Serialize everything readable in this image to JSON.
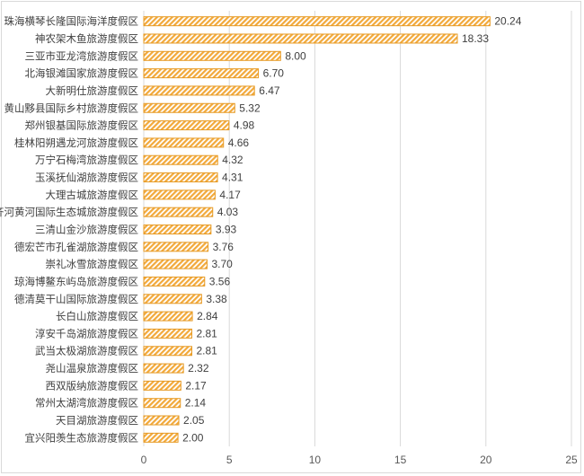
{
  "chart_data": {
    "type": "bar",
    "orientation": "horizontal",
    "title": "",
    "xlabel": "",
    "ylabel": "",
    "xlim": [
      0,
      25
    ],
    "xticks": [
      0,
      5,
      10,
      15,
      20,
      25
    ],
    "grid": true,
    "legend": "none",
    "bar_fill": "hatched",
    "colors": {
      "bar": "#f2a93b",
      "bar_stroke": "#e69a24",
      "grid": "#d9d9d9",
      "text": "#404040"
    },
    "categories": [
      "珠海横琴长隆国际海洋度假区",
      "神农架木鱼旅游度假区",
      "三亚市亚龙湾旅游度假区",
      "北海银滩国家旅游度假区",
      "大新明仕旅游度假区",
      "黄山黟县国际乡村旅游度假区",
      "郑州银基国际旅游度假区",
      "桂林阳朔遇龙河旅游度假区",
      "万宁石梅湾旅游度假区",
      "玉溪抚仙湖旅游度假区",
      "大理古城旅游度假区",
      "齐河黄河国际生态城旅游度假区",
      "三清山金沙旅游度假区",
      "德宏芒市孔雀湖旅游度假区",
      "崇礼冰雪旅游度假区",
      "琼海博鳌东屿岛旅游度假区",
      "德清莫干山国际旅游度假区",
      "长白山旅游度假区",
      "淳安千岛湖旅游度假区",
      "武当太极湖旅游度假区",
      "尧山温泉旅游度假区",
      "西双版纳旅游度假区",
      "常州太湖湾旅游度假区",
      "天目湖旅游度假区",
      "宜兴阳羡生态旅游度假区"
    ],
    "values": [
      20.24,
      18.33,
      8.0,
      6.7,
      6.47,
      5.32,
      4.98,
      4.66,
      4.32,
      4.31,
      4.17,
      4.03,
      3.93,
      3.76,
      3.7,
      3.56,
      3.38,
      2.84,
      2.81,
      2.81,
      2.32,
      2.17,
      2.14,
      2.05,
      2.0
    ],
    "value_labels": [
      "20.24",
      "18.33",
      "8.00",
      "6.70",
      "6.47",
      "5.32",
      "4.98",
      "4.66",
      "4.32",
      "4.31",
      "4.17",
      "4.03",
      "3.93",
      "3.76",
      "3.70",
      "3.56",
      "3.38",
      "2.84",
      "2.81",
      "2.81",
      "2.32",
      "2.17",
      "2.14",
      "2.05",
      "2.00"
    ],
    "tick_labels": [
      "0",
      "5",
      "10",
      "15",
      "20",
      "25"
    ]
  }
}
